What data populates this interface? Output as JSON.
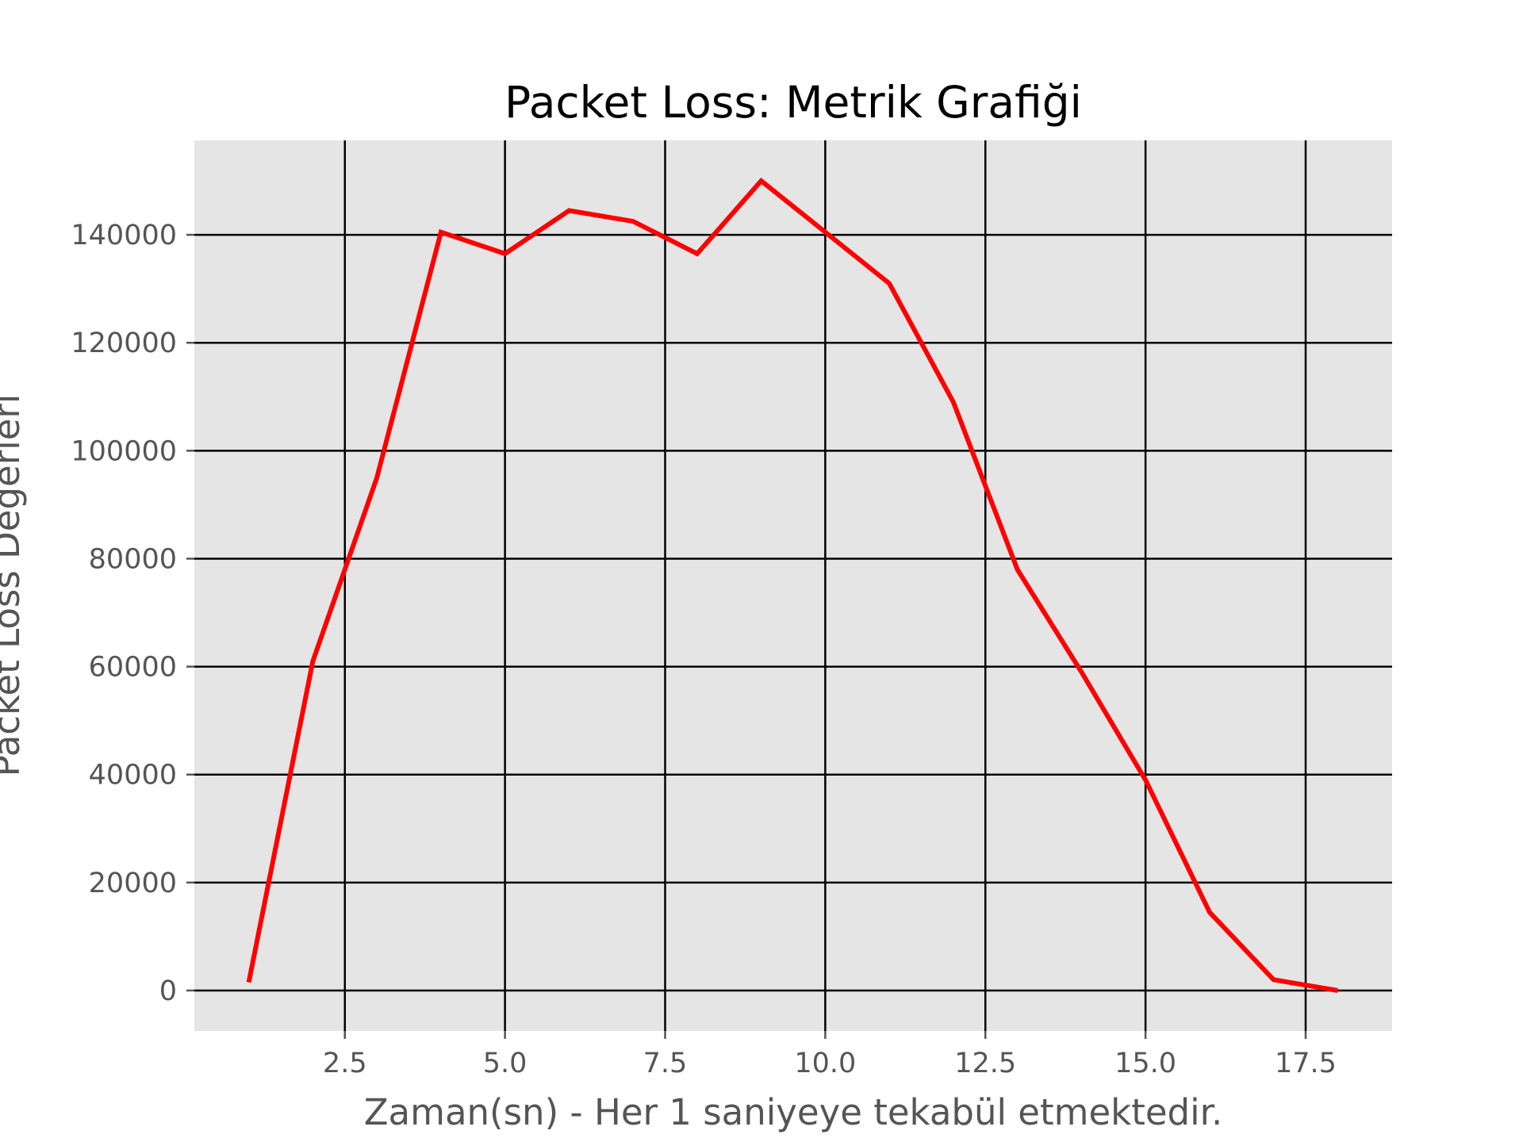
{
  "chart_data": {
    "type": "line",
    "title": "Packet Loss: Metrik Grafiği",
    "xlabel": "Zaman(sn) - Her 1 saniyeye tekabül etmektedir.",
    "ylabel": "Packet Loss Değerleri",
    "xlim": [
      0.15,
      18.85
    ],
    "ylim": [
      -7500,
      157500
    ],
    "xticks": [
      2.5,
      5.0,
      7.5,
      10.0,
      12.5,
      15.0,
      17.5
    ],
    "xtick_labels": [
      "2.5",
      "5.0",
      "7.5",
      "10.0",
      "12.5",
      "15.0",
      "17.5"
    ],
    "yticks": [
      0,
      20000,
      40000,
      60000,
      80000,
      100000,
      120000,
      140000
    ],
    "ytick_labels": [
      "0",
      "20000",
      "40000",
      "60000",
      "80000",
      "100000",
      "120000",
      "140000"
    ],
    "grid": true,
    "background": "#e5e5e5",
    "grid_color": "#000000",
    "series": [
      {
        "color": "#ff0000",
        "x": [
          1,
          2,
          3,
          4,
          5,
          6,
          7,
          8,
          9,
          10,
          11,
          12,
          13,
          14,
          15,
          16,
          17,
          18
        ],
        "values": [
          1500,
          61000,
          95000,
          140500,
          136500,
          144500,
          142500,
          136500,
          150000,
          140500,
          131000,
          109000,
          78000,
          59000,
          39000,
          14500,
          2000,
          0
        ]
      }
    ]
  }
}
